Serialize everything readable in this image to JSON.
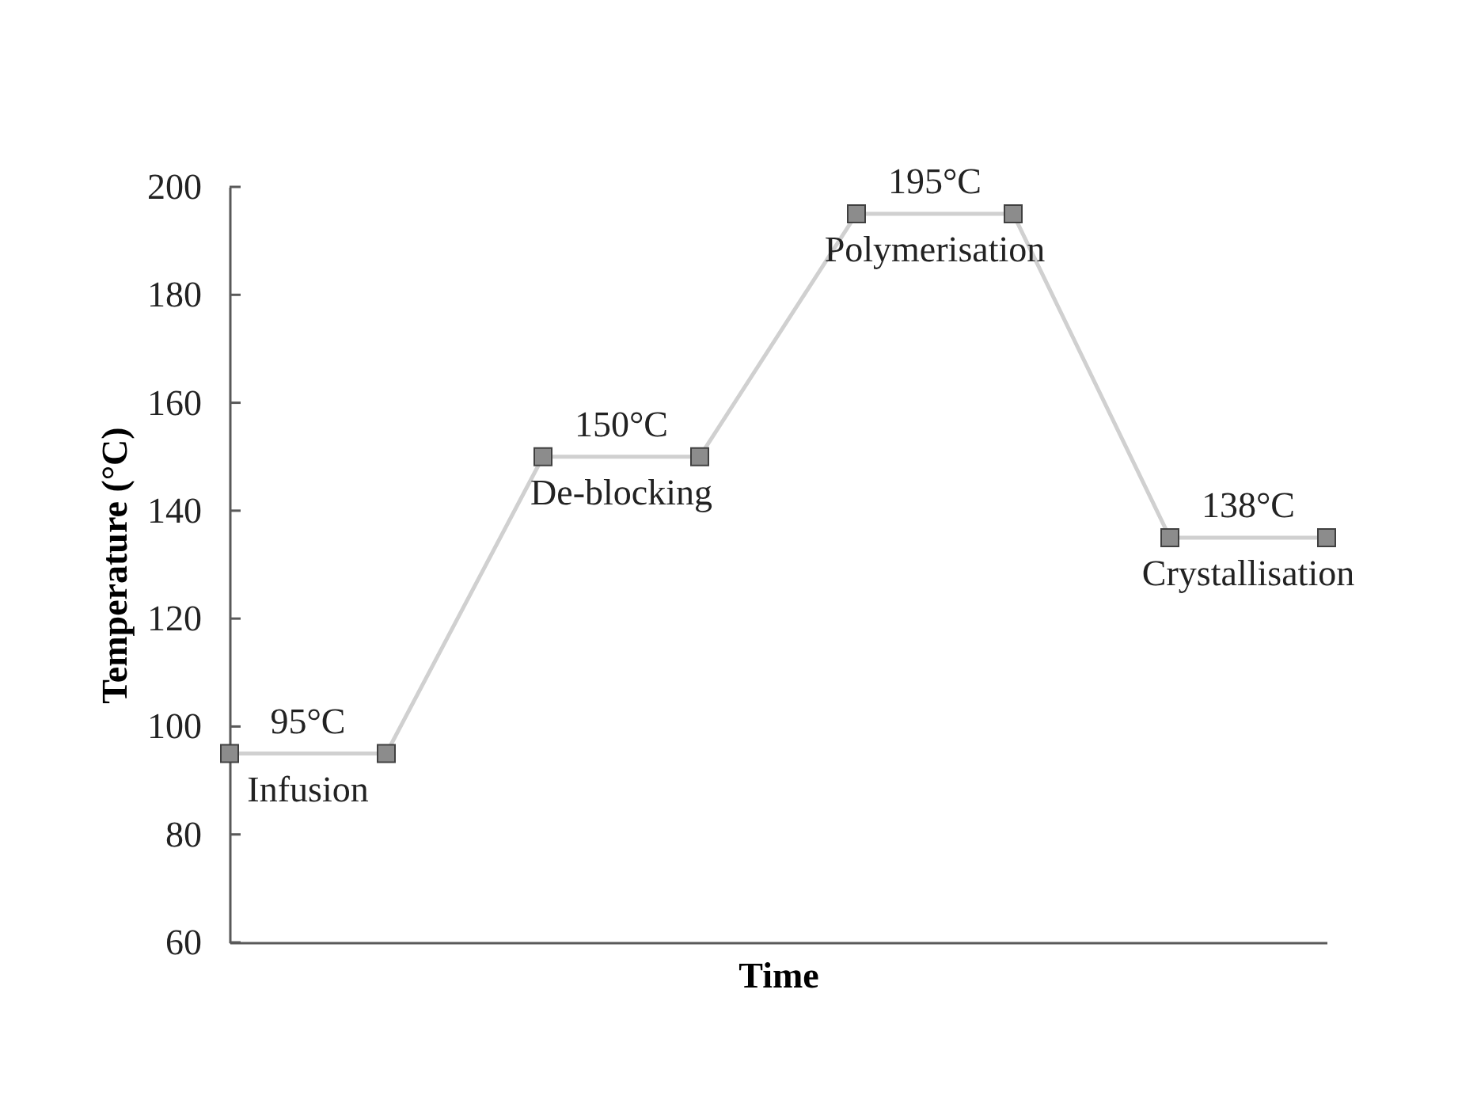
{
  "chart_data": {
    "type": "line",
    "xlabel": "Time",
    "ylabel": "Temperature (°C)",
    "categories": [
      null,
      null,
      null,
      null,
      null,
      null,
      null,
      null
    ],
    "values": [
      95,
      95,
      150,
      150,
      195,
      195,
      135,
      135
    ],
    "color": "#d0d0d0",
    "marker": "square",
    "ylim": [
      60,
      200
    ],
    "yticks": [
      60,
      80,
      100,
      120,
      140,
      160,
      180,
      200
    ],
    "tick_labels": "y",
    "annotations": [
      "95°C",
      "Infusion",
      "150°C",
      "De-blocking",
      "195°C",
      "Polymerisation",
      "138°C",
      "Crystallisation"
    ]
  }
}
